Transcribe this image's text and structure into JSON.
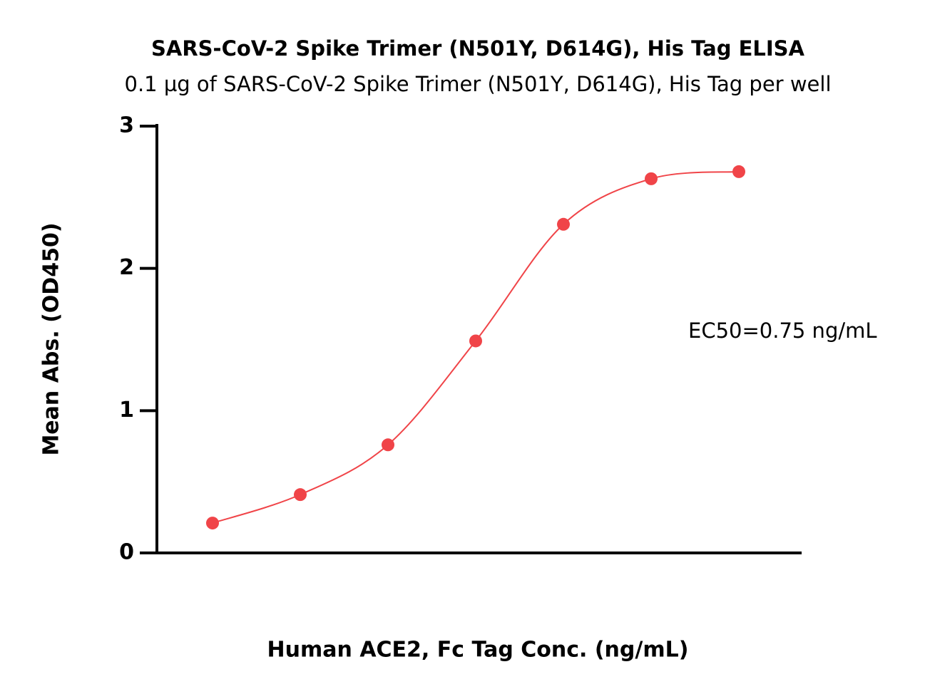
{
  "chart_data": {
    "type": "line",
    "title": "SARS-CoV-2 Spike Trimer (N501Y, D614G), His Tag ELISA",
    "subtitle": "0.1 µg of SARS-CoV-2 Spike Trimer (N501Y, D614G), His Tag per well",
    "x_label": "Human ACE2, Fc Tag Conc. (ng/mL)",
    "y_label": "Mean Abs. (OD450)",
    "annotation": "EC50=0.75 ng/mL",
    "categories": [
      null,
      null,
      null,
      null,
      null,
      null,
      null
    ],
    "series": [
      {
        "color": "#f04448",
        "values": [
          0.21,
          0.41,
          0.76,
          1.49,
          2.31,
          2.63,
          2.68
        ]
      }
    ],
    "ylim": [
      0,
      3
    ],
    "yticks": [
      0,
      1,
      2,
      3
    ],
    "grid": false
  }
}
